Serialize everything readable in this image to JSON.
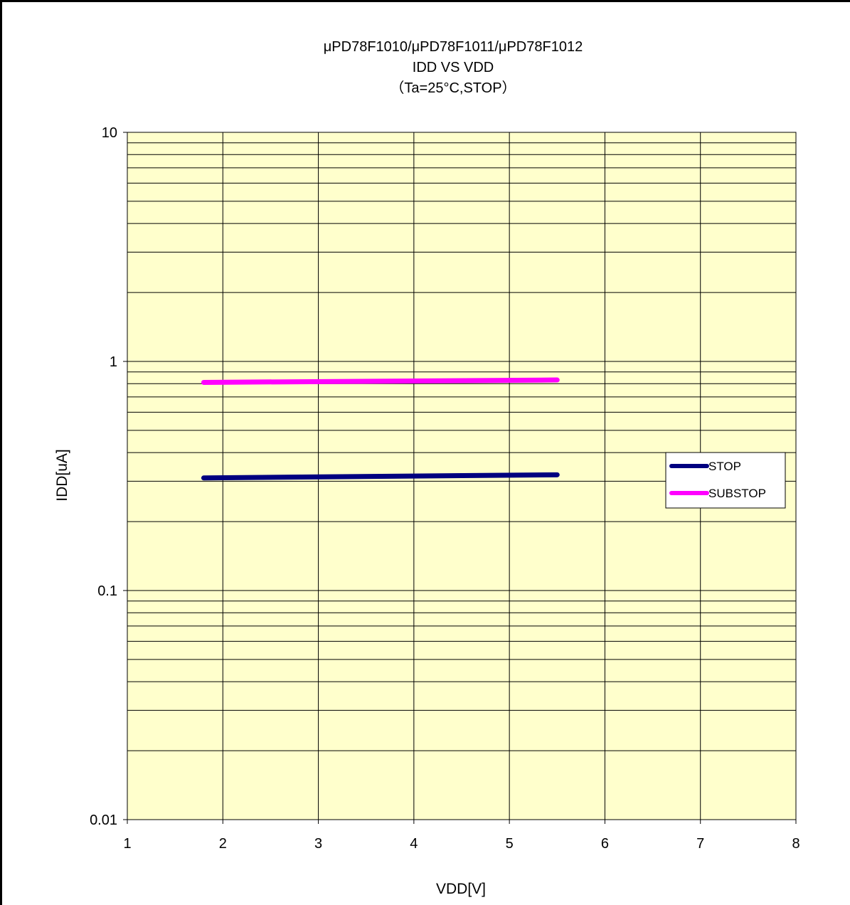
{
  "chart_data": {
    "type": "line",
    "title_lines": [
      "μPD78F1010/μPD78F1011/μPD78F1012",
      "IDD VS VDD",
      "（Ta=25°C,STOP）"
    ],
    "xlabel": "VDD[V]",
    "ylabel": "IDD[uA]",
    "xlim": [
      1,
      8
    ],
    "ylim": [
      0.01,
      10
    ],
    "yscale": "log",
    "x_ticks": [
      "1",
      "2",
      "3",
      "4",
      "5",
      "6",
      "7",
      "8"
    ],
    "y_ticks": [
      "10",
      "1",
      "0.1",
      "0.01"
    ],
    "grid": true,
    "legend_position": "right",
    "plot_background": "#ffffcc",
    "series": [
      {
        "name": "STOP",
        "color": "#000080",
        "x": [
          1.8,
          5.5
        ],
        "y": [
          0.31,
          0.32
        ]
      },
      {
        "name": "SUBSTOP",
        "color": "#ff00ff",
        "x": [
          1.8,
          5.5
        ],
        "y": [
          0.81,
          0.83
        ]
      }
    ]
  }
}
